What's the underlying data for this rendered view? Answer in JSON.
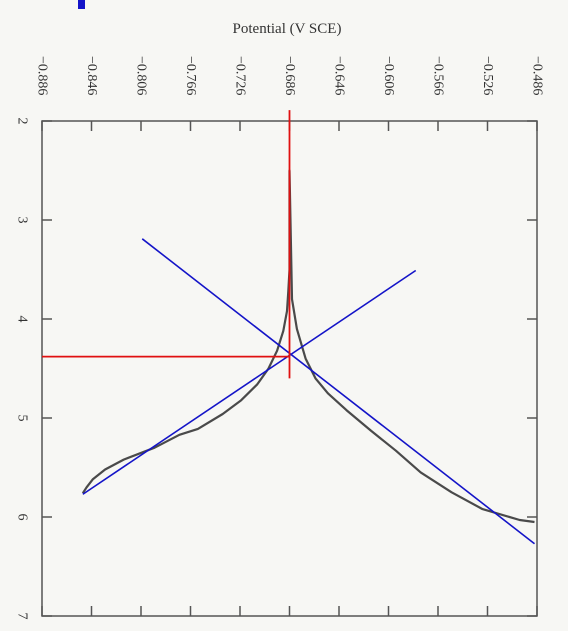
{
  "chart_data": {
    "type": "line",
    "title": "",
    "potential_axis": {
      "label": "Potential (V SCE)",
      "range": [
        -0.886,
        -0.486
      ],
      "ticks": [
        "−0.886",
        "−0.846",
        "−0.806",
        "−0.766",
        "−0.726",
        "−0.686",
        "−0.646",
        "−0.606",
        "−0.566",
        "−0.526",
        "−0.486"
      ],
      "tick_values": [
        -0.886,
        -0.846,
        -0.806,
        -0.766,
        -0.726,
        -0.686,
        -0.646,
        -0.606,
        -0.566,
        -0.526,
        -0.486
      ]
    },
    "log_axis": {
      "label": "",
      "range": [
        2,
        7
      ],
      "ticks": [
        "2",
        "3",
        "4",
        "5",
        "6",
        "7"
      ],
      "tick_values": [
        2,
        3,
        4,
        5,
        6,
        7
      ]
    },
    "series": [
      {
        "color": "#4a4a4a",
        "points": [
          [
            -0.853,
            5.76
          ],
          [
            -0.85,
            5.7
          ],
          [
            -0.845,
            5.62
          ],
          [
            -0.835,
            5.52
          ],
          [
            -0.82,
            5.42
          ],
          [
            -0.795,
            5.3
          ],
          [
            -0.775,
            5.17
          ],
          [
            -0.76,
            5.11
          ],
          [
            -0.74,
            4.96
          ],
          [
            -0.725,
            4.82
          ],
          [
            -0.712,
            4.66
          ],
          [
            -0.703,
            4.5
          ],
          [
            -0.696,
            4.32
          ],
          [
            -0.691,
            4.12
          ],
          [
            -0.688,
            3.92
          ],
          [
            -0.687,
            3.72
          ],
          [
            -0.686,
            3.5
          ],
          [
            -0.686,
            2.9
          ],
          [
            -0.686,
            2.5
          ],
          [
            -0.684,
            3.8
          ],
          [
            -0.68,
            4.1
          ],
          [
            -0.673,
            4.4
          ],
          [
            -0.665,
            4.6
          ],
          [
            -0.655,
            4.75
          ],
          [
            -0.64,
            4.92
          ],
          [
            -0.62,
            5.13
          ],
          [
            -0.6,
            5.33
          ],
          [
            -0.58,
            5.55
          ],
          [
            -0.555,
            5.75
          ],
          [
            -0.53,
            5.92
          ],
          [
            -0.5,
            6.03
          ],
          [
            -0.488,
            6.05
          ]
        ]
      }
    ],
    "tafel_lines": {
      "color": "#1414c8",
      "lines": [
        [
          [
            -0.853,
            5.77
          ],
          [
            -0.584,
            3.51
          ]
        ],
        [
          [
            -0.805,
            3.19
          ],
          [
            -0.488,
            6.27
          ]
        ]
      ]
    },
    "guide_lines": {
      "color": "#e01010",
      "vertical": [
        [
          -0.686,
          1.89
        ],
        [
          -0.686,
          4.6
        ]
      ],
      "horizontal": [
        [
          -0.886,
          4.38
        ],
        [
          -0.686,
          4.38
        ]
      ]
    },
    "annotations": {
      "corrosion_potential": -0.686,
      "log_corrosion_current": 4.38
    },
    "grid": false,
    "legend": "none"
  }
}
